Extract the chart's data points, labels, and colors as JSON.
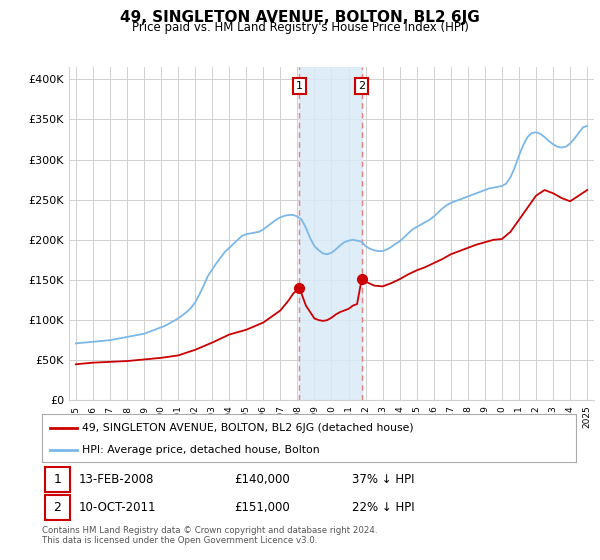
{
  "title": "49, SINGLETON AVENUE, BOLTON, BL2 6JG",
  "subtitle": "Price paid vs. HM Land Registry's House Price Index (HPI)",
  "ylabel_ticks": [
    "£0",
    "£50K",
    "£100K",
    "£150K",
    "£200K",
    "£250K",
    "£300K",
    "£350K",
    "£400K"
  ],
  "ytick_values": [
    0,
    50000,
    100000,
    150000,
    200000,
    250000,
    300000,
    350000,
    400000
  ],
  "ylim": [
    0,
    415000
  ],
  "sale1_year": 2008.12,
  "sale1_price": 140000,
  "sale2_year": 2011.77,
  "sale2_price": 151000,
  "hpi_color": "#7bb8e8",
  "price_color": "#cc0000",
  "span_color": "#daeaf7",
  "dashed_color": "#e88080",
  "legend_label_red": "49, SINGLETON AVENUE, BOLTON, BL2 6JG (detached house)",
  "legend_label_blue": "HPI: Average price, detached house, Bolton",
  "footnote1": "Contains HM Land Registry data © Crown copyright and database right 2024.",
  "footnote2": "This data is licensed under the Open Government Licence v3.0.",
  "background_color": "#ffffff",
  "grid_color": "#d0d0d0",
  "hpi_years": [
    1995,
    1995.25,
    1995.5,
    1995.75,
    1996,
    1996.25,
    1996.5,
    1996.75,
    1997,
    1997.25,
    1997.5,
    1997.75,
    1998,
    1998.25,
    1998.5,
    1998.75,
    1999,
    1999.25,
    1999.5,
    1999.75,
    2000,
    2000.25,
    2000.5,
    2000.75,
    2001,
    2001.25,
    2001.5,
    2001.75,
    2002,
    2002.25,
    2002.5,
    2002.75,
    2003,
    2003.25,
    2003.5,
    2003.75,
    2004,
    2004.25,
    2004.5,
    2004.75,
    2005,
    2005.25,
    2005.5,
    2005.75,
    2006,
    2006.25,
    2006.5,
    2006.75,
    2007,
    2007.25,
    2007.5,
    2007.75,
    2008,
    2008.25,
    2008.5,
    2008.75,
    2009,
    2009.25,
    2009.5,
    2009.75,
    2010,
    2010.25,
    2010.5,
    2010.75,
    2011,
    2011.25,
    2011.5,
    2011.75,
    2012,
    2012.25,
    2012.5,
    2012.75,
    2013,
    2013.25,
    2013.5,
    2013.75,
    2014,
    2014.25,
    2014.5,
    2014.75,
    2015,
    2015.25,
    2015.5,
    2015.75,
    2016,
    2016.25,
    2016.5,
    2016.75,
    2017,
    2017.25,
    2017.5,
    2017.75,
    2018,
    2018.25,
    2018.5,
    2018.75,
    2019,
    2019.25,
    2019.5,
    2019.75,
    2020,
    2020.25,
    2020.5,
    2020.75,
    2021,
    2021.25,
    2021.5,
    2021.75,
    2022,
    2022.25,
    2022.5,
    2022.75,
    2023,
    2023.25,
    2023.5,
    2023.75,
    2024,
    2024.25,
    2024.5,
    2024.75,
    2025
  ],
  "hpi_values": [
    71000,
    71500,
    72000,
    72500,
    73000,
    73500,
    74000,
    74500,
    75000,
    76000,
    77000,
    78000,
    79000,
    80000,
    81000,
    82000,
    83000,
    85000,
    87000,
    89000,
    91000,
    93000,
    96000,
    99000,
    102000,
    106000,
    110000,
    115000,
    122000,
    132000,
    143000,
    155000,
    163000,
    171000,
    178000,
    185000,
    190000,
    195000,
    200000,
    205000,
    207000,
    208000,
    209000,
    210000,
    213000,
    217000,
    221000,
    225000,
    228000,
    230000,
    231000,
    231000,
    229000,
    225000,
    215000,
    202000,
    192000,
    187000,
    183000,
    182000,
    184000,
    188000,
    193000,
    197000,
    199000,
    200000,
    199000,
    198000,
    192000,
    189000,
    187000,
    186000,
    186000,
    188000,
    191000,
    195000,
    198000,
    203000,
    208000,
    213000,
    216000,
    219000,
    222000,
    225000,
    229000,
    234000,
    239000,
    243000,
    246000,
    248000,
    250000,
    252000,
    254000,
    256000,
    258000,
    260000,
    262000,
    264000,
    265000,
    266000,
    267000,
    270000,
    278000,
    290000,
    305000,
    318000,
    328000,
    333000,
    334000,
    332000,
    328000,
    323000,
    319000,
    316000,
    315000,
    316000,
    320000,
    326000,
    333000,
    340000,
    342000
  ],
  "price_years": [
    1995,
    1996,
    1997,
    1998,
    1999,
    2000,
    2001,
    2002,
    2003,
    2004,
    2005,
    2006,
    2007,
    2007.5,
    2007.75,
    2008.12,
    2008.5,
    2008.75,
    2009,
    2009.25,
    2009.5,
    2009.75,
    2010,
    2010.25,
    2010.5,
    2010.75,
    2011,
    2011.25,
    2011.5,
    2011.77,
    2012,
    2012.5,
    2013,
    2013.5,
    2014,
    2014.5,
    2015,
    2015.5,
    2016,
    2016.5,
    2017,
    2017.5,
    2018,
    2018.5,
    2019,
    2019.5,
    2020,
    2020.5,
    2021,
    2021.5,
    2022,
    2022.5,
    2023,
    2023.5,
    2024,
    2024.5,
    2025
  ],
  "price_values": [
    45000,
    47000,
    48000,
    49000,
    51000,
    53000,
    56000,
    63000,
    72000,
    82000,
    88000,
    97000,
    112000,
    125000,
    133000,
    140000,
    118000,
    110000,
    102000,
    100000,
    99000,
    100000,
    103000,
    107000,
    110000,
    112000,
    114000,
    118000,
    120000,
    151000,
    148000,
    143000,
    142000,
    146000,
    151000,
    157000,
    162000,
    166000,
    171000,
    176000,
    182000,
    186000,
    190000,
    194000,
    197000,
    200000,
    201000,
    210000,
    225000,
    240000,
    255000,
    262000,
    258000,
    252000,
    248000,
    255000,
    262000
  ]
}
